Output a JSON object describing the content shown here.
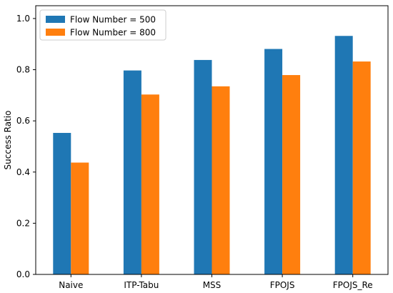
{
  "chart_data": {
    "type": "bar",
    "categories": [
      "Naive",
      "ITP-Tabu",
      "MSS",
      "FPOJS",
      "FPOJS_Re"
    ],
    "series": [
      {
        "name": "Flow Number = 500",
        "color": "#1f77b4",
        "values": [
          0.553,
          0.797,
          0.838,
          0.881,
          0.932
        ]
      },
      {
        "name": "Flow Number = 800",
        "color": "#ff7f0e",
        "values": [
          0.437,
          0.703,
          0.735,
          0.779,
          0.832
        ]
      }
    ],
    "title": "",
    "xlabel": "",
    "ylabel": "Success Ratio",
    "ylim": [
      0,
      1.05
    ],
    "yticks": [
      0.0,
      0.2,
      0.4,
      0.6,
      0.8,
      1.0
    ],
    "ytick_labels": [
      "0.0",
      "0.2",
      "0.4",
      "0.6",
      "0.8",
      "1.0"
    ],
    "grid": false,
    "legend_position": "top-left"
  }
}
